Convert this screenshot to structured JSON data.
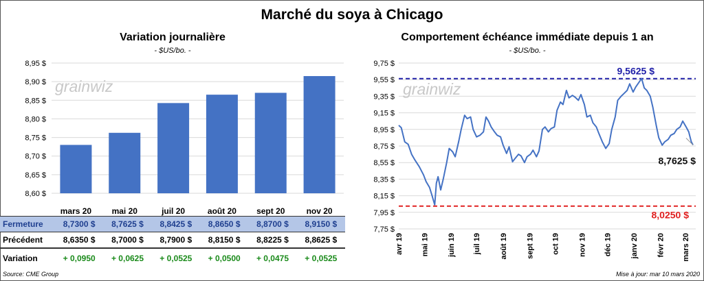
{
  "title": "Marché du soya à Chicago",
  "watermark": "grainwiz",
  "source": "Source: CME Group",
  "update": "Mise à jour: mar 10 mars 2020",
  "colors": {
    "bar": "#4472c4",
    "line": "#4472c4",
    "high": "#1f1fa8",
    "low": "#e02020",
    "up": "#1a8a1a"
  },
  "left_panel": {
    "title": "Variation  journalière",
    "subtitle": "- $US/bo. -",
    "table": {
      "rows": [
        {
          "label": "Fermeture",
          "values": [
            "8,7300  $",
            "8,7625  $",
            "8,8425  $",
            "8,8650  $",
            "8,8700  $",
            "8,9150  $"
          ]
        },
        {
          "label": "Précédent",
          "values": [
            "8,6350  $",
            "8,7000  $",
            "8,7900  $",
            "8,8150  $",
            "8,8225  $",
            "8,8625  $"
          ]
        },
        {
          "label": "Variation",
          "values": [
            "+ 0,0950",
            "+ 0,0625",
            "+ 0,0525",
            "+ 0,0500",
            "+ 0,0475",
            "+ 0,0525"
          ]
        }
      ]
    }
  },
  "right_panel": {
    "title": "Comportement  échéance immédiate depuis 1 an",
    "subtitle": "- $US/bo. -",
    "high_label": "9,5625  $",
    "low_label": "8,0250  $",
    "last_label": "8,7625 $"
  },
  "chart_data": [
    {
      "type": "bar",
      "categories": [
        "mars 20",
        "mai 20",
        "juil 20",
        "août 20",
        "sept 20",
        "nov 20"
      ],
      "values": [
        8.73,
        8.7625,
        8.8425,
        8.865,
        8.87,
        8.915
      ],
      "ylim": [
        8.6,
        8.95
      ],
      "yticks": [
        "8,60 $",
        "8,65 $",
        "8,70 $",
        "8,75 $",
        "8,80 $",
        "8,85 $",
        "8,90 $",
        "8,95 $"
      ],
      "grid": true
    },
    {
      "type": "line",
      "x_start": "2019-04-01",
      "x_end": "2020-03-10",
      "xticks": [
        "avr 19",
        "mai 19",
        "juin 19",
        "juil 19",
        "août 19",
        "sept 19",
        "oct 19",
        "nov 19",
        "déc 19",
        "janv 20",
        "févr 20",
        "mars 20"
      ],
      "ylim": [
        7.75,
        9.75
      ],
      "yticks": [
        "7,75 $",
        "7,95 $",
        "8,15 $",
        "8,35 $",
        "8,55 $",
        "8,75 $",
        "8,95 $",
        "9,15 $",
        "9,35 $",
        "9,55 $",
        "9,75 $"
      ],
      "reference_lines": {
        "high": 9.5625,
        "low": 8.025
      },
      "grid": true,
      "points": [
        [
          "2019-04-01",
          9.0
        ],
        [
          "2019-04-04",
          8.97
        ],
        [
          "2019-04-08",
          8.8
        ],
        [
          "2019-04-12",
          8.77
        ],
        [
          "2019-04-16",
          8.65
        ],
        [
          "2019-04-20",
          8.58
        ],
        [
          "2019-04-25",
          8.5
        ],
        [
          "2019-04-30",
          8.4
        ],
        [
          "2019-05-03",
          8.32
        ],
        [
          "2019-05-07",
          8.25
        ],
        [
          "2019-05-10",
          8.15
        ],
        [
          "2019-05-13",
          8.04
        ],
        [
          "2019-05-15",
          8.3
        ],
        [
          "2019-05-17",
          8.38
        ],
        [
          "2019-05-20",
          8.22
        ],
        [
          "2019-05-23",
          8.35
        ],
        [
          "2019-05-27",
          8.55
        ],
        [
          "2019-05-30",
          8.72
        ],
        [
          "2019-06-03",
          8.68
        ],
        [
          "2019-06-06",
          8.62
        ],
        [
          "2019-06-10",
          8.8
        ],
        [
          "2019-06-13",
          8.95
        ],
        [
          "2019-06-17",
          9.12
        ],
        [
          "2019-06-20",
          9.08
        ],
        [
          "2019-06-24",
          9.1
        ],
        [
          "2019-06-27",
          8.95
        ],
        [
          "2019-07-01",
          8.86
        ],
        [
          "2019-07-05",
          8.88
        ],
        [
          "2019-07-09",
          8.92
        ],
        [
          "2019-07-12",
          9.1
        ],
        [
          "2019-07-15",
          9.05
        ],
        [
          "2019-07-18",
          8.98
        ],
        [
          "2019-07-22",
          8.92
        ],
        [
          "2019-07-25",
          8.88
        ],
        [
          "2019-07-29",
          8.86
        ],
        [
          "2019-08-01",
          8.76
        ],
        [
          "2019-08-05",
          8.66
        ],
        [
          "2019-08-08",
          8.74
        ],
        [
          "2019-08-12",
          8.56
        ],
        [
          "2019-08-15",
          8.6
        ],
        [
          "2019-08-19",
          8.65
        ],
        [
          "2019-08-22",
          8.63
        ],
        [
          "2019-08-26",
          8.55
        ],
        [
          "2019-08-29",
          8.62
        ],
        [
          "2019-09-02",
          8.65
        ],
        [
          "2019-09-05",
          8.7
        ],
        [
          "2019-09-09",
          8.62
        ],
        [
          "2019-09-12",
          8.69
        ],
        [
          "2019-09-16",
          8.95
        ],
        [
          "2019-09-19",
          8.98
        ],
        [
          "2019-09-23",
          8.92
        ],
        [
          "2019-09-26",
          8.96
        ],
        [
          "2019-09-30",
          8.98
        ],
        [
          "2019-10-03",
          9.18
        ],
        [
          "2019-10-07",
          9.28
        ],
        [
          "2019-10-10",
          9.25
        ],
        [
          "2019-10-14",
          9.42
        ],
        [
          "2019-10-17",
          9.33
        ],
        [
          "2019-10-21",
          9.36
        ],
        [
          "2019-10-24",
          9.34
        ],
        [
          "2019-10-28",
          9.3
        ],
        [
          "2019-10-31",
          9.37
        ],
        [
          "2019-11-04",
          9.25
        ],
        [
          "2019-11-07",
          9.1
        ],
        [
          "2019-11-11",
          9.12
        ],
        [
          "2019-11-14",
          9.03
        ],
        [
          "2019-11-18",
          8.98
        ],
        [
          "2019-11-21",
          8.9
        ],
        [
          "2019-11-25",
          8.8
        ],
        [
          "2019-11-29",
          8.72
        ],
        [
          "2019-12-03",
          8.78
        ],
        [
          "2019-12-06",
          8.95
        ],
        [
          "2019-12-10",
          9.1
        ],
        [
          "2019-12-13",
          9.3
        ],
        [
          "2019-12-17",
          9.35
        ],
        [
          "2019-12-20",
          9.38
        ],
        [
          "2019-12-24",
          9.42
        ],
        [
          "2019-12-27",
          9.5
        ],
        [
          "2019-12-31",
          9.4
        ],
        [
          "2020-01-03",
          9.46
        ],
        [
          "2020-01-07",
          9.52
        ],
        [
          "2020-01-10",
          9.5625
        ],
        [
          "2020-01-13",
          9.45
        ],
        [
          "2020-01-16",
          9.42
        ],
        [
          "2020-01-20",
          9.35
        ],
        [
          "2020-01-23",
          9.22
        ],
        [
          "2020-01-27",
          9.0
        ],
        [
          "2020-01-30",
          8.85
        ],
        [
          "2020-02-03",
          8.76
        ],
        [
          "2020-02-06",
          8.8
        ],
        [
          "2020-02-10",
          8.83
        ],
        [
          "2020-02-13",
          8.88
        ],
        [
          "2020-02-17",
          8.9
        ],
        [
          "2020-02-20",
          8.95
        ],
        [
          "2020-02-24",
          8.98
        ],
        [
          "2020-02-27",
          9.05
        ],
        [
          "2020-03-02",
          8.98
        ],
        [
          "2020-03-05",
          8.92
        ],
        [
          "2020-03-08",
          8.8
        ],
        [
          "2020-03-10",
          8.7625
        ]
      ]
    }
  ]
}
